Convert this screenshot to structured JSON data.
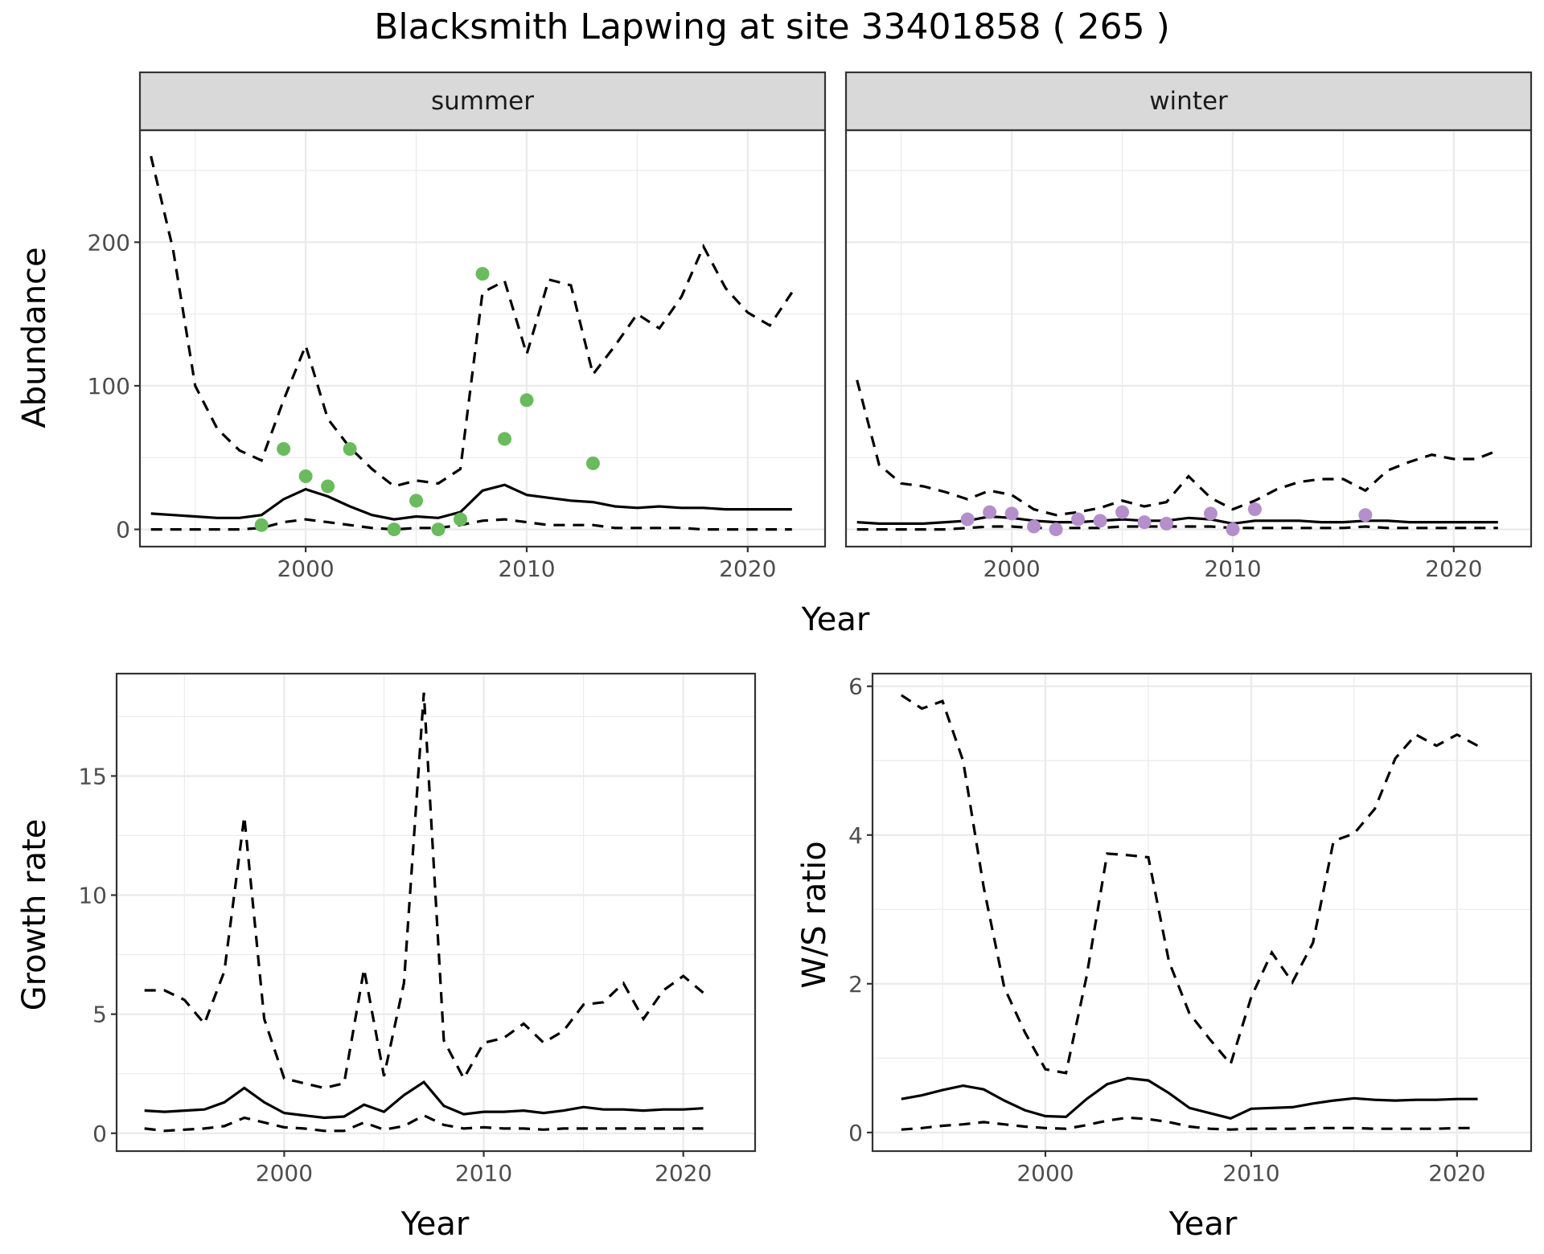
{
  "title": "Blacksmith Lapwing at site 33401858 ( 265 )",
  "chart_data": [
    {
      "type": "line",
      "facet": "summer",
      "xlabel": "Year",
      "ylabel": "Abundance",
      "xlim": [
        1992.5,
        2023.5
      ],
      "ylim": [
        -12,
        278
      ],
      "xticks": [
        2000,
        2010,
        2020
      ],
      "yticks": [
        0,
        100,
        200
      ],
      "point_color": "#6ABB5D",
      "series": [
        {
          "style": "solid",
          "x": [
            1993,
            1994,
            1995,
            1996,
            1997,
            1998,
            1999,
            2000,
            2001,
            2002,
            2003,
            2004,
            2005,
            2006,
            2007,
            2008,
            2009,
            2010,
            2011,
            2012,
            2013,
            2014,
            2015,
            2016,
            2017,
            2018,
            2019,
            2020,
            2021,
            2022
          ],
          "values": [
            11,
            10,
            9,
            8,
            8,
            10,
            21,
            28,
            23,
            16,
            10,
            7,
            9,
            8,
            12,
            27,
            31,
            24,
            22,
            20,
            19,
            16,
            15,
            16,
            15,
            15,
            14,
            14,
            14,
            14
          ]
        },
        {
          "style": "dashed",
          "x": [
            1993,
            1994,
            1995,
            1996,
            1997,
            1998,
            1999,
            2000,
            2001,
            2002,
            2003,
            2004,
            2005,
            2006,
            2007,
            2008,
            2009,
            2010,
            2011,
            2012,
            2013,
            2014,
            2015,
            2016,
            2017,
            2018,
            2019,
            2020,
            2021,
            2022
          ],
          "values": [
            260,
            195,
            100,
            70,
            55,
            48,
            90,
            128,
            77,
            57,
            42,
            30,
            34,
            32,
            42,
            165,
            173,
            122,
            174,
            170,
            108,
            128,
            150,
            140,
            162,
            197,
            168,
            151,
            142,
            165
          ]
        },
        {
          "style": "dashed",
          "x": [
            1993,
            1994,
            1995,
            1996,
            1997,
            1998,
            1999,
            2000,
            2001,
            2002,
            2003,
            2004,
            2005,
            2006,
            2007,
            2008,
            2009,
            2010,
            2011,
            2012,
            2013,
            2014,
            2015,
            2016,
            2017,
            2018,
            2019,
            2020,
            2021,
            2022
          ],
          "values": [
            0,
            0,
            0,
            0,
            0,
            1,
            5,
            7,
            5,
            3,
            1,
            0,
            1,
            1,
            3,
            6,
            7,
            5,
            3,
            3,
            3,
            1,
            1,
            1,
            1,
            0,
            0,
            0,
            0,
            0
          ]
        }
      ],
      "points": {
        "x": [
          1998,
          1999,
          2000,
          2001,
          2002,
          2004,
          2005,
          2006,
          2007,
          2008,
          2009,
          2010,
          2013
        ],
        "values": [
          3,
          56,
          37,
          30,
          56,
          0,
          20,
          0,
          7,
          178,
          63,
          90,
          46
        ]
      }
    },
    {
      "type": "line",
      "facet": "winter",
      "xlabel": "Year",
      "ylabel": "Abundance",
      "xlim": [
        1992.5,
        2023.5
      ],
      "ylim": [
        -12,
        278
      ],
      "xticks": [
        2000,
        2010,
        2020
      ],
      "yticks": [
        0,
        100,
        200
      ],
      "point_color": "#B48FCB",
      "series": [
        {
          "style": "solid",
          "x": [
            1993,
            1994,
            1995,
            1996,
            1997,
            1998,
            1999,
            2000,
            2001,
            2002,
            2003,
            2004,
            2005,
            2006,
            2007,
            2008,
            2009,
            2010,
            2011,
            2012,
            2013,
            2014,
            2015,
            2016,
            2017,
            2018,
            2019,
            2020,
            2021,
            2022
          ],
          "values": [
            5,
            4,
            4,
            4,
            5,
            6,
            9,
            8,
            6,
            5,
            5,
            6,
            7,
            6,
            6,
            8,
            7,
            4,
            6,
            6,
            6,
            5,
            5,
            6,
            6,
            5,
            5,
            5,
            5,
            5
          ]
        },
        {
          "style": "dashed",
          "x": [
            1993,
            1994,
            1995,
            1996,
            1997,
            1998,
            1999,
            2000,
            2001,
            2002,
            2003,
            2004,
            2005,
            2006,
            2007,
            2008,
            2009,
            2010,
            2011,
            2012,
            2013,
            2014,
            2015,
            2016,
            2017,
            2018,
            2019,
            2020,
            2021,
            2022
          ],
          "values": [
            104,
            45,
            32,
            30,
            26,
            21,
            27,
            24,
            14,
            10,
            12,
            15,
            20,
            16,
            19,
            37,
            22,
            14,
            20,
            28,
            33,
            35,
            35,
            27,
            41,
            47,
            52,
            49,
            49,
            55
          ]
        },
        {
          "style": "dashed",
          "x": [
            1993,
            1994,
            1995,
            1996,
            1997,
            1998,
            1999,
            2000,
            2001,
            2002,
            2003,
            2004,
            2005,
            2006,
            2007,
            2008,
            2009,
            2010,
            2011,
            2012,
            2013,
            2014,
            2015,
            2016,
            2017,
            2018,
            2019,
            2020,
            2021,
            2022
          ],
          "values": [
            0,
            0,
            0,
            0,
            0,
            1,
            2,
            2,
            1,
            1,
            1,
            1,
            2,
            2,
            2,
            2,
            2,
            1,
            1,
            1,
            1,
            1,
            1,
            2,
            1,
            1,
            1,
            1,
            1,
            1
          ]
        }
      ],
      "points": {
        "x": [
          1998,
          1999,
          2000,
          2001,
          2002,
          2003,
          2004,
          2005,
          2006,
          2007,
          2009,
          2010,
          2011,
          2016
        ],
        "values": [
          7,
          12,
          11,
          2,
          0,
          7,
          6,
          12,
          5,
          4,
          11,
          0,
          14,
          10
        ]
      }
    },
    {
      "type": "line",
      "xlabel": "Year",
      "ylabel": "Growth rate",
      "xlim": [
        1991.6,
        2023.6
      ],
      "ylim": [
        -0.75,
        19.3
      ],
      "xticks": [
        2000,
        2010,
        2020
      ],
      "yticks": [
        0,
        5,
        10,
        15
      ],
      "series": [
        {
          "style": "solid",
          "x": [
            1993,
            1994,
            1995,
            1996,
            1997,
            1998,
            1999,
            2000,
            2001,
            2002,
            2003,
            2004,
            2005,
            2006,
            2007,
            2008,
            2009,
            2010,
            2011,
            2012,
            2013,
            2014,
            2015,
            2016,
            2017,
            2018,
            2019,
            2020,
            2021
          ],
          "values": [
            0.95,
            0.9,
            0.95,
            1.0,
            1.3,
            1.9,
            1.3,
            0.85,
            0.75,
            0.65,
            0.7,
            1.2,
            0.9,
            1.6,
            2.15,
            1.15,
            0.8,
            0.9,
            0.9,
            0.95,
            0.85,
            0.95,
            1.1,
            1.0,
            1.0,
            0.95,
            1.0,
            1.0,
            1.05
          ]
        },
        {
          "style": "dashed",
          "x": [
            1993,
            1994,
            1995,
            1996,
            1997,
            1998,
            1999,
            2000,
            2001,
            2002,
            2003,
            2004,
            2005,
            2006,
            2007,
            2008,
            2009,
            2010,
            2011,
            2012,
            2013,
            2014,
            2015,
            2016,
            2017,
            2018,
            2019,
            2020,
            2021
          ],
          "values": [
            6.0,
            6.0,
            5.6,
            4.6,
            6.8,
            13.3,
            4.8,
            2.3,
            2.1,
            1.9,
            2.1,
            6.9,
            2.4,
            6.3,
            18.5,
            3.9,
            2.3,
            3.8,
            4.0,
            4.6,
            3.8,
            4.3,
            5.4,
            5.5,
            6.3,
            4.8,
            6.0,
            6.6,
            5.9
          ]
        },
        {
          "style": "dashed",
          "x": [
            1993,
            1994,
            1995,
            1996,
            1997,
            1998,
            1999,
            2000,
            2001,
            2002,
            2003,
            2004,
            2005,
            2006,
            2007,
            2008,
            2009,
            2010,
            2011,
            2012,
            2013,
            2014,
            2015,
            2016,
            2017,
            2018,
            2019,
            2020,
            2021
          ],
          "values": [
            0.2,
            0.1,
            0.15,
            0.2,
            0.3,
            0.65,
            0.45,
            0.25,
            0.2,
            0.1,
            0.1,
            0.45,
            0.15,
            0.3,
            0.75,
            0.35,
            0.2,
            0.25,
            0.2,
            0.2,
            0.15,
            0.2,
            0.2,
            0.2,
            0.2,
            0.2,
            0.2,
            0.2,
            0.2
          ]
        }
      ]
    },
    {
      "type": "line",
      "xlabel": "Year",
      "ylabel": "W/S ratio",
      "xlim": [
        1991.6,
        2023.6
      ],
      "ylim": [
        -0.25,
        6.17
      ],
      "xticks": [
        2000,
        2010,
        2020
      ],
      "yticks": [
        0,
        2,
        4,
        6
      ],
      "series": [
        {
          "style": "solid",
          "x": [
            1993,
            1994,
            1995,
            1996,
            1997,
            1998,
            1999,
            2000,
            2001,
            2002,
            2003,
            2004,
            2005,
            2006,
            2007,
            2008,
            2009,
            2010,
            2011,
            2012,
            2013,
            2014,
            2015,
            2016,
            2017,
            2018,
            2019,
            2020,
            2021
          ],
          "values": [
            0.45,
            0.5,
            0.57,
            0.63,
            0.58,
            0.43,
            0.3,
            0.22,
            0.21,
            0.45,
            0.65,
            0.73,
            0.7,
            0.53,
            0.33,
            0.26,
            0.19,
            0.32,
            0.33,
            0.34,
            0.39,
            0.43,
            0.46,
            0.44,
            0.43,
            0.44,
            0.44,
            0.45,
            0.45
          ]
        },
        {
          "style": "dashed",
          "x": [
            1993,
            1994,
            1995,
            1996,
            1997,
            1998,
            1999,
            2000,
            2001,
            2002,
            2003,
            2004,
            2005,
            2006,
            2007,
            2008,
            2009,
            2010,
            2011,
            2012,
            2013,
            2014,
            2015,
            2016,
            2017,
            2018,
            2019,
            2020,
            2021
          ],
          "values": [
            5.88,
            5.7,
            5.8,
            5.0,
            3.3,
            1.95,
            1.35,
            0.85,
            0.8,
            2.1,
            3.75,
            3.73,
            3.7,
            2.3,
            1.6,
            1.25,
            0.92,
            1.82,
            2.42,
            2.02,
            2.55,
            3.92,
            4.02,
            4.35,
            5.03,
            5.35,
            5.2,
            5.35,
            5.2
          ]
        },
        {
          "style": "dashed",
          "x": [
            1993,
            1994,
            1995,
            1996,
            1997,
            1998,
            1999,
            2000,
            2001,
            2002,
            2003,
            2004,
            2005,
            2006,
            2007,
            2008,
            2009,
            2010,
            2011,
            2012,
            2013,
            2014,
            2015,
            2016,
            2017,
            2018,
            2019,
            2020,
            2021
          ],
          "values": [
            0.04,
            0.06,
            0.09,
            0.11,
            0.14,
            0.11,
            0.08,
            0.06,
            0.05,
            0.1,
            0.16,
            0.2,
            0.18,
            0.14,
            0.08,
            0.05,
            0.04,
            0.05,
            0.05,
            0.05,
            0.06,
            0.06,
            0.06,
            0.05,
            0.05,
            0.05,
            0.05,
            0.06,
            0.06
          ]
        }
      ]
    }
  ],
  "labels": {
    "summer": "summer",
    "winter": "winter",
    "year": "Year",
    "abundance": "Abundance",
    "growth": "Growth rate",
    "ws": "W/S ratio"
  }
}
